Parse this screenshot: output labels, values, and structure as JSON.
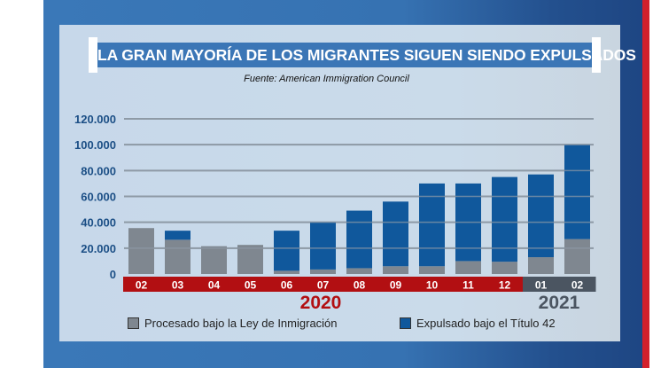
{
  "colors": {
    "processed": "#7f8790",
    "expelled": "#10589c",
    "year_2020": "#b20f12",
    "year_2021": "#4b5561",
    "axis_label": "#1c4f86",
    "gridline": "#8e9aa6"
  },
  "chart_data": {
    "type": "bar",
    "stacked": true,
    "title": "LA GRAN MAYORÍA DE LOS MIGRANTES SIGUEN SIENDO EXPULSADOS",
    "subtitle": "Fuente: American Immigration Council",
    "xlabel": "",
    "ylabel": "",
    "categories": [
      "02",
      "03",
      "04",
      "05",
      "06",
      "07",
      "08",
      "09",
      "10",
      "11",
      "12",
      "01",
      "02"
    ],
    "category_years": [
      "2020",
      "2020",
      "2020",
      "2020",
      "2020",
      "2020",
      "2020",
      "2020",
      "2020",
      "2020",
      "2020",
      "2021",
      "2021"
    ],
    "year_labels": [
      "2020",
      "2021"
    ],
    "yticks": [
      "0",
      "20.000",
      "40.000",
      "60.000",
      "80.000",
      "100.000",
      "120.000"
    ],
    "ylim": [
      0,
      120000
    ],
    "grid": true,
    "legend_position": "bottom",
    "series": [
      {
        "name": "Procesado bajo la Ley de Inmigración",
        "values": [
          35500,
          26500,
          21500,
          22500,
          2500,
          3500,
          4500,
          6000,
          6000,
          10000,
          9500,
          13000,
          27000
        ]
      },
      {
        "name": "Expulsado bajo el Título 42",
        "values": [
          0,
          7000,
          0,
          0,
          31000,
          36500,
          44500,
          50000,
          64000,
          60000,
          65500,
          64000,
          73000
        ]
      }
    ]
  }
}
